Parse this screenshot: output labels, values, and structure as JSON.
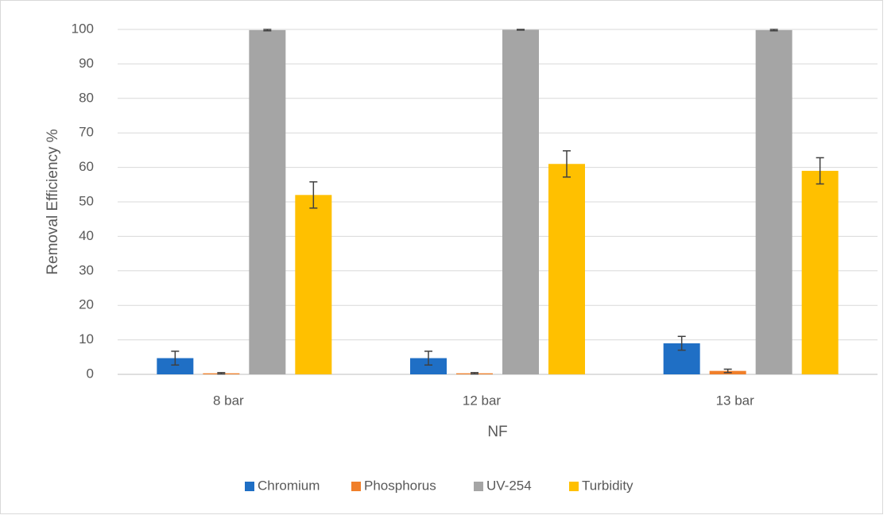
{
  "chart_data": {
    "type": "bar",
    "x_label": "NF",
    "y_label": "Removal Efficiency %",
    "categories": [
      "8 bar",
      "12 bar",
      "13 bar"
    ],
    "series": [
      {
        "name": "Chromium",
        "color": "#1f6fc5",
        "values": [
          4.7,
          4.7,
          9
        ],
        "errors": [
          2,
          2,
          2
        ]
      },
      {
        "name": "Phosphorus",
        "color": "#f07f2a",
        "values": [
          0.3,
          0.3,
          1
        ],
        "errors": [
          0.2,
          0.2,
          0.5
        ]
      },
      {
        "name": "UV-254",
        "color": "#a5a5a5",
        "values": [
          99.8,
          99.9,
          99.8
        ],
        "errors": [
          0.2,
          0.1,
          0.2
        ]
      },
      {
        "name": "Turbidity",
        "color": "#ffc000",
        "values": [
          52,
          61,
          59
        ],
        "errors": [
          3.8,
          3.8,
          3.8
        ]
      }
    ],
    "ylim": [
      0,
      100
    ],
    "yticks": [
      0,
      10,
      20,
      30,
      40,
      50,
      60,
      70,
      80,
      90,
      100
    ],
    "grid": true,
    "legend": "bottom"
  }
}
